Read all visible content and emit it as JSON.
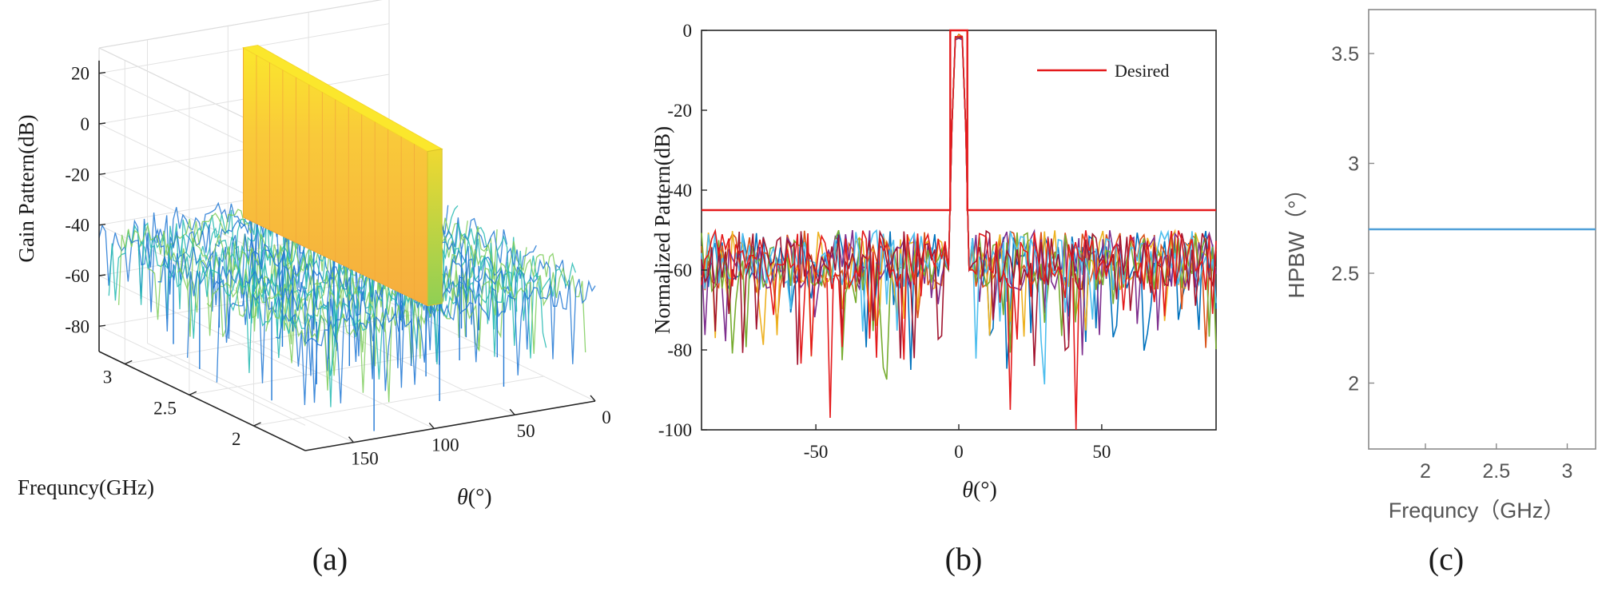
{
  "panels": [
    {
      "label": "(a)"
    },
    {
      "label": "(b)"
    },
    {
      "label": "(c)"
    }
  ],
  "chart_data": [
    {
      "type": "surface",
      "zlabel": "Gain Pattern(dB)",
      "ylabel": "Frequncy(GHz)",
      "xlabel_symbol": "θ",
      "xlabel_unit": "(°)",
      "z_ticks": [
        "20",
        "0",
        "-20",
        "-40",
        "-60",
        "-80"
      ],
      "z_values": [
        20,
        0,
        -20,
        -40,
        -60,
        -80
      ],
      "freq_ticks": [
        "3",
        "2.5",
        "2"
      ],
      "freq_values": [
        3,
        2.5,
        2
      ],
      "theta_ticks": [
        "150",
        "100",
        "50",
        "0"
      ],
      "theta_values": [
        150,
        100,
        50,
        0
      ],
      "theta_range": [
        0,
        180
      ],
      "freq_range": [
        1.6,
        3.2
      ],
      "z_range": [
        -80,
        25
      ],
      "mainbeam_peak_db": [
        22,
        16
      ],
      "sidelobe_level_db": -40,
      "colormap": [
        "#1f77d4",
        "#22b8b0",
        "#7dcc5a",
        "#f5b43a",
        "#fbe72c"
      ]
    },
    {
      "type": "line",
      "ylabel": "Normalized Pattern(dB)",
      "xlabel_symbol": "θ",
      "xlabel_unit": "(°)",
      "xlim": [
        -90,
        90
      ],
      "ylim": [
        -100,
        0
      ],
      "x_ticks": [
        "-50",
        "0",
        "50"
      ],
      "x_tick_values": [
        -50,
        0,
        50
      ],
      "y_ticks": [
        "0",
        "-20",
        "-40",
        "-60",
        "-80",
        "-100"
      ],
      "y_tick_values": [
        0,
        -20,
        -40,
        -60,
        -80,
        -100
      ],
      "legend": {
        "entries": [
          "Desired"
        ],
        "placement": "top-right"
      },
      "desired_mask": {
        "x": [
          -90,
          -3,
          -3,
          3,
          3,
          90
        ],
        "y": [
          -45,
          -45,
          0,
          0,
          -45,
          -45
        ],
        "color": "#e41a1c"
      },
      "series_colors": [
        "#0072bd",
        "#d95319",
        "#edb120",
        "#7e2f8e",
        "#77ac30",
        "#4dbeee",
        "#a2142f",
        "#e41a1c"
      ],
      "sidelobe_range_db": [
        -65,
        -50
      ],
      "deep_nulls_db": [
        {
          "x": -45,
          "y": -97
        },
        {
          "x": 41,
          "y": -100
        },
        {
          "x": 18,
          "y": -95
        }
      ]
    },
    {
      "type": "line",
      "ylabel": "HPBW（°）",
      "xlabel": "Frequncy（GHz）",
      "xlim": [
        1.6,
        3.2
      ],
      "ylim": [
        1.7,
        3.7
      ],
      "x_ticks": [
        "2",
        "2.5",
        "3"
      ],
      "x_tick_values": [
        2,
        2.5,
        3
      ],
      "y_ticks": [
        "3.5",
        "3",
        "2.5",
        "2"
      ],
      "y_tick_values": [
        3.5,
        3,
        2.5,
        2
      ],
      "series": [
        {
          "x": [
            1.6,
            3.2
          ],
          "values": [
            2.7,
            2.7
          ],
          "color": "#4f9fd8"
        }
      ]
    }
  ]
}
